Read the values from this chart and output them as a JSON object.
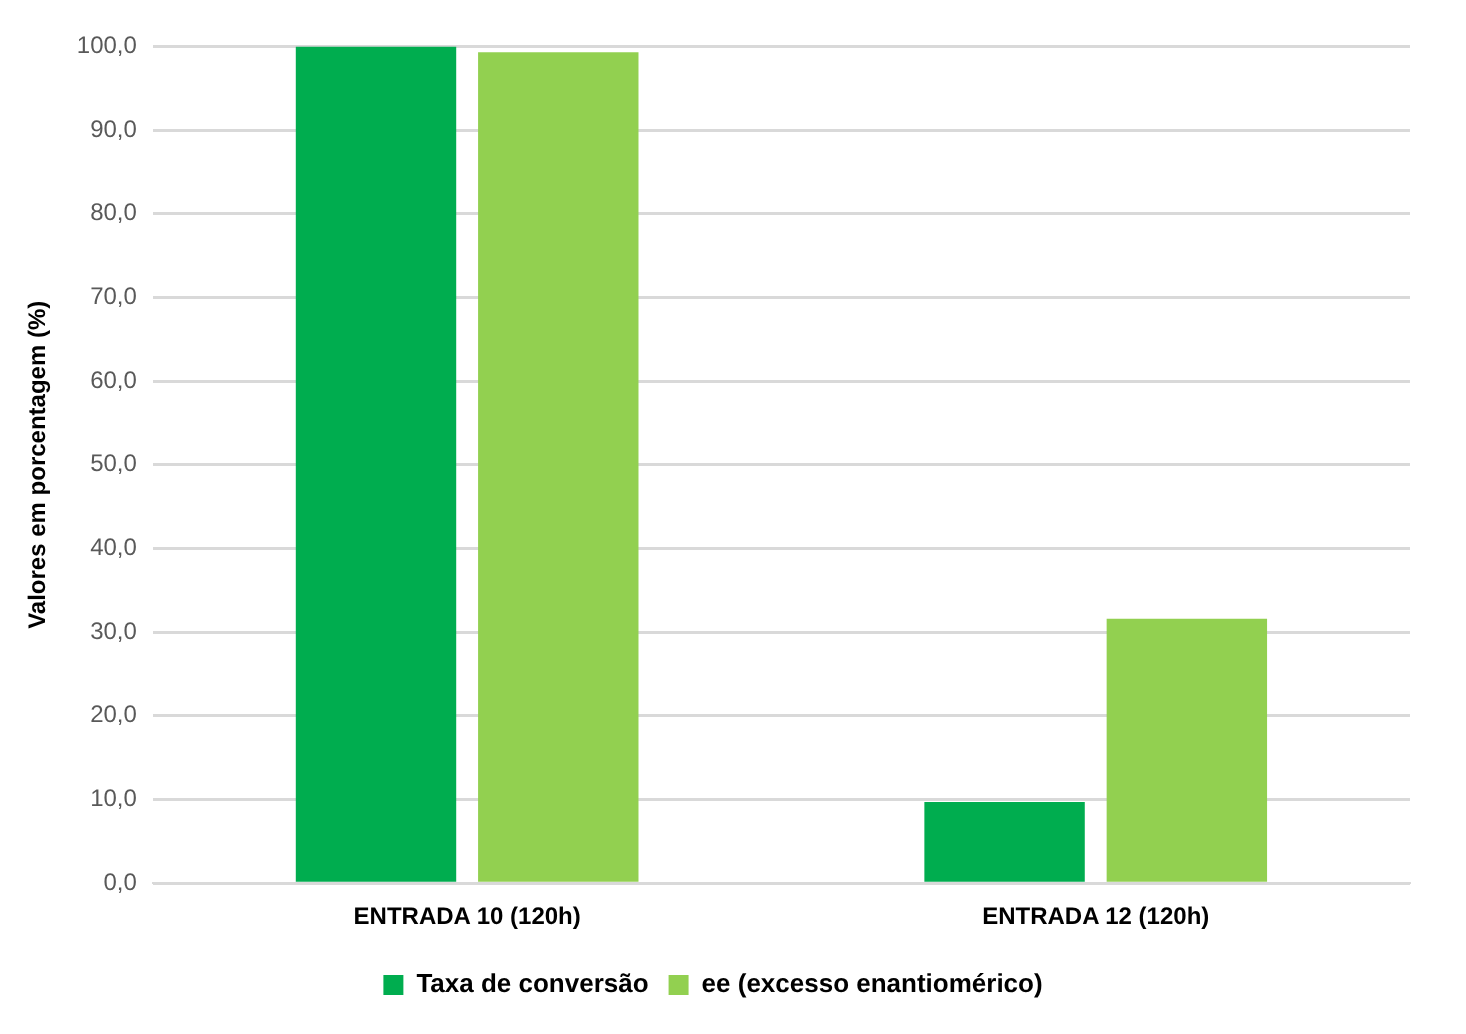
{
  "chart_data": {
    "type": "bar",
    "ylabel": "Valores em porcentagem (%)",
    "categories": [
      "ENTRADA 10 (120h)",
      "ENTRADA 12 (120h)"
    ],
    "series": [
      {
        "name": "Taxa de conversão",
        "color": "#00ad4f",
        "values": [
          100,
          9.7
        ]
      },
      {
        "name": "ee (excesso enantiomérico)",
        "color": "#92d050",
        "values": [
          99.3,
          31.6
        ]
      }
    ],
    "ylim": [
      0,
      100
    ],
    "yticks": [
      {
        "value": 0,
        "label": "0,0"
      },
      {
        "value": 10,
        "label": "10,0"
      },
      {
        "value": 20,
        "label": "20,0"
      },
      {
        "value": 30,
        "label": "30,0"
      },
      {
        "value": 40,
        "label": "40,0"
      },
      {
        "value": 50,
        "label": "50,0"
      },
      {
        "value": 60,
        "label": "60,0"
      },
      {
        "value": 70,
        "label": "70,0"
      },
      {
        "value": 80,
        "label": "80,0"
      },
      {
        "value": 90,
        "label": "90,0"
      },
      {
        "value": 100,
        "label": "100,0"
      }
    ],
    "grid": "y",
    "legend": "bottom"
  }
}
